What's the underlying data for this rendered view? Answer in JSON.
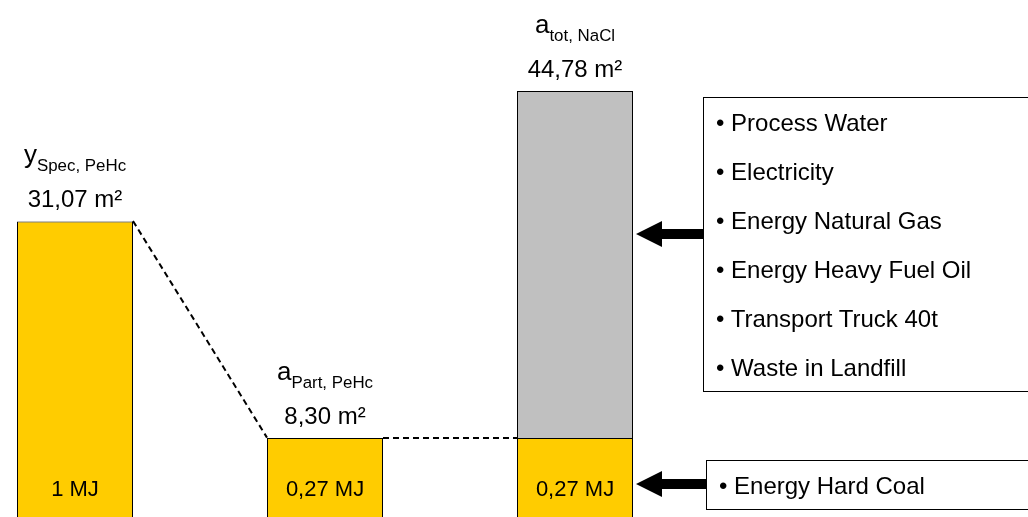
{
  "chart_data": {
    "type": "bar",
    "stacked": true,
    "categories": [
      "y$_{Spec, PeHc}$",
      "a$_{Part, PeHc}$",
      "a$_{tot, NaCl}$"
    ],
    "series": [
      {
        "color": "#ffcc00",
        "values": [
          31.07,
          8.3,
          8.3
        ],
        "value_labels": [
          "31,07 m²",
          "8,30 m²",
          null
        ]
      },
      {
        "color": "#c0c0c0",
        "values": [
          null,
          null,
          36.48
        ]
      }
    ],
    "totals": [
      null,
      null,
      "44,78 m²"
    ],
    "annotations": [
      "1 MJ",
      "0,27 MJ",
      "0,27 MJ",
      "• Process Water\n• Electricity\n• Energy Natural Gas\n• Energy Heavy Fuel Oil\n• Transport Truck 40t\n• Waste in Landfill",
      "• Energy Hard Coal"
    ]
  }
}
